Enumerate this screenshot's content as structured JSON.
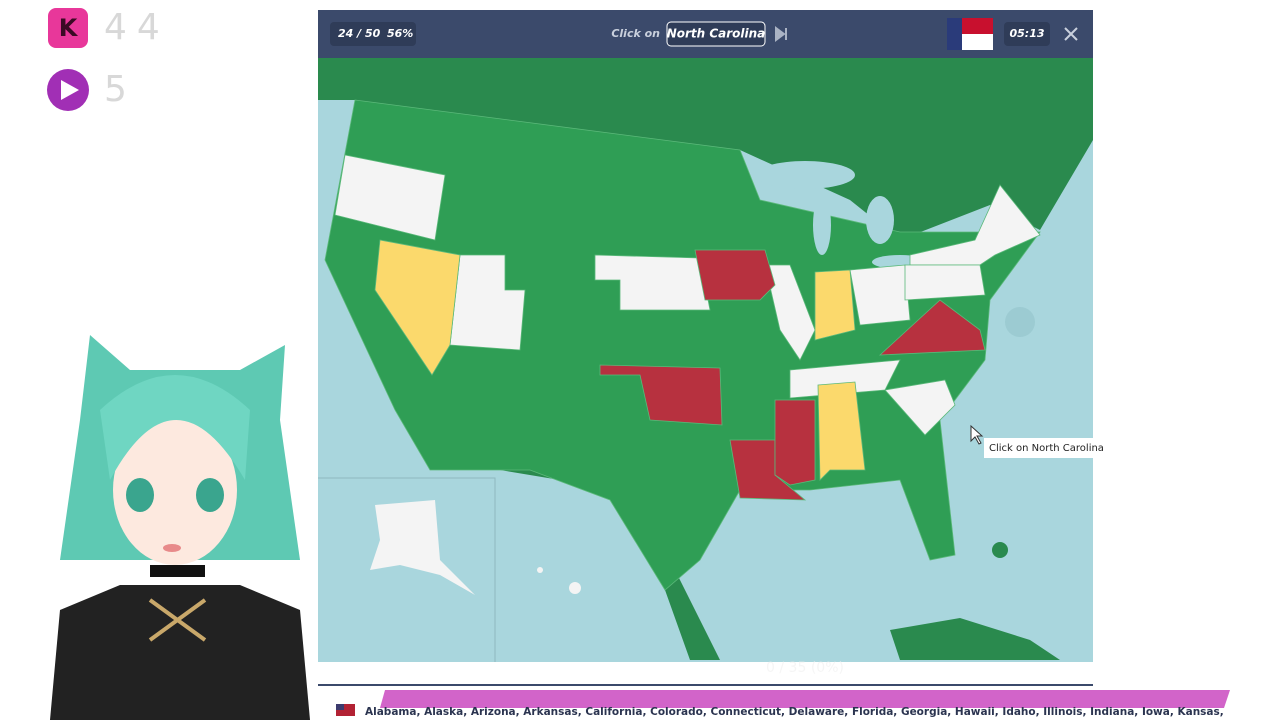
{
  "overlay": {
    "kick_count": "44",
    "rumble_count": "5"
  },
  "quiz": {
    "progress": "24 / 50",
    "percent": "56%",
    "prompt": "Click on",
    "target": "North Carolina",
    "timer": "05:13",
    "tooltip": "Click on North Carolina",
    "faded_score": "0 / 35 (0%)",
    "states_list": "Alabama, Alaska, Arizona, Arkansas, California, Colorado, Connecticut, Delaware, Florida, Georgia, Hawaii, Idaho, Illinois, Indiana, Iowa, Kansas,"
  }
}
